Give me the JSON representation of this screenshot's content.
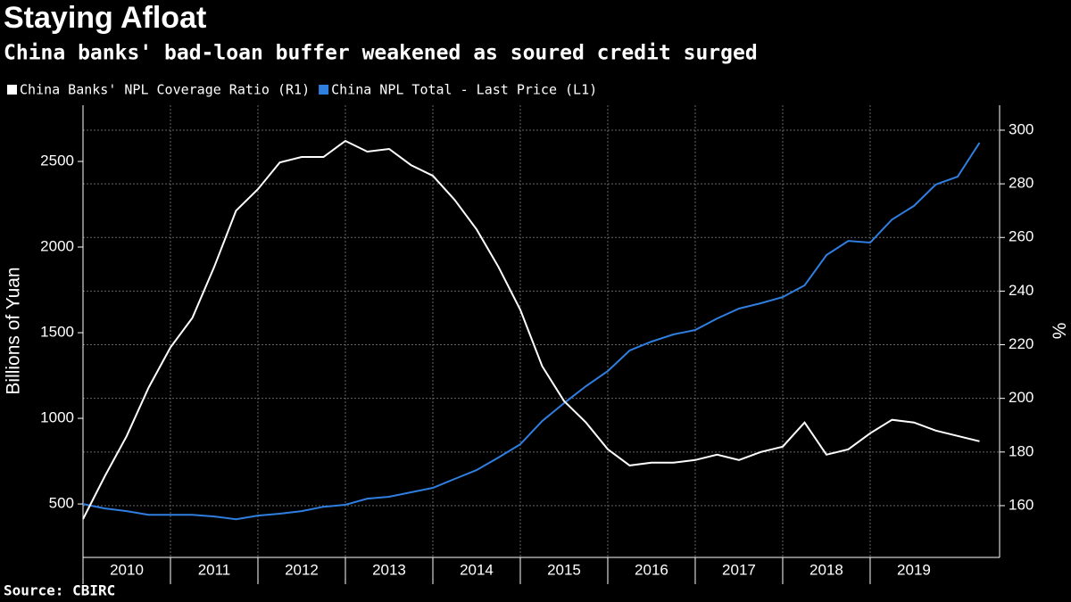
{
  "chart_data": {
    "type": "line",
    "title": "Staying Afloat",
    "subtitle": "China banks' bad-loan buffer weakened as soured credit surged",
    "source": "Source: CBIRC",
    "y_label": "Billions of Yuan",
    "y2_label": "%",
    "x": [
      2010,
      2010.25,
      2010.5,
      2010.75,
      2011,
      2011.25,
      2011.5,
      2011.75,
      2012,
      2012.25,
      2012.5,
      2012.75,
      2013,
      2013.25,
      2013.5,
      2013.75,
      2014,
      2014.25,
      2014.5,
      2014.75,
      2015,
      2015.25,
      2015.5,
      2015.75,
      2016,
      2016.25,
      2016.5,
      2016.75,
      2017,
      2017.25,
      2017.5,
      2017.75,
      2018,
      2018.25,
      2018.5,
      2018.75,
      2019,
      2019.25,
      2019.5,
      2019.75,
      2020,
      2020.25
    ],
    "xlim": [
      2010,
      2020.48
    ],
    "xticks": [
      2010,
      2011,
      2012,
      2013,
      2014,
      2015,
      2016,
      2017,
      2018,
      2019
    ],
    "ylim": [
      188,
      2828
    ],
    "yticks": [
      500,
      1000,
      1500,
      2000,
      2500
    ],
    "y2lim": [
      140.7,
      309.3
    ],
    "y2ticks": [
      160,
      180,
      200,
      220,
      240,
      260,
      280,
      300
    ],
    "grid": true,
    "series": [
      {
        "name": "China Banks' NPL Coverage Ratio (R1)",
        "color": "#ffffff",
        "axis": "y2",
        "values": [
          155,
          171,
          186,
          204,
          219,
          230,
          249,
          270,
          278,
          288,
          290,
          290,
          296,
          292,
          293,
          287,
          283,
          274,
          263,
          249,
          233,
          212,
          199,
          191,
          181,
          175,
          176,
          176,
          177,
          179,
          177,
          180,
          182,
          191,
          179,
          181,
          187,
          192,
          191,
          188,
          186,
          184
        ]
      },
      {
        "name": "China NPL Total - Last Price (L1)",
        "color": "#2f7ee0",
        "values": [
          500,
          474,
          458,
          437,
          437,
          437,
          427,
          411,
          432,
          443,
          458,
          484,
          495,
          531,
          542,
          568,
          594,
          646,
          698,
          771,
          849,
          984,
          1089,
          1188,
          1276,
          1396,
          1448,
          1490,
          1516,
          1583,
          1641,
          1672,
          1708,
          1776,
          1953,
          2036,
          2026,
          2161,
          2240,
          2365,
          2411,
          2609
        ]
      }
    ]
  }
}
